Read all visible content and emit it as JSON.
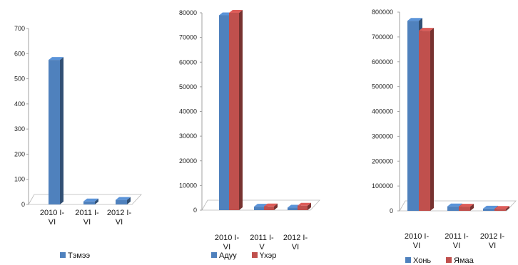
{
  "chart_data": [
    {
      "type": "bar",
      "categories": [
        [
          "2010 I-",
          "VI"
        ],
        [
          "2011 I-",
          "VI"
        ],
        [
          "2012 I-",
          "VI"
        ]
      ],
      "series": [
        {
          "name": "Тэмээ",
          "values": [
            575,
            12,
            18
          ],
          "color": "#4f81bd"
        }
      ],
      "y_ticks": [
        "0",
        "100",
        "200",
        "300",
        "400",
        "500",
        "600",
        "700"
      ],
      "ylim": [
        0,
        700
      ]
    },
    {
      "type": "bar",
      "categories": [
        [
          "2010 I-",
          "VI"
        ],
        [
          "2011 I-",
          "V"
        ],
        [
          "2012 I-",
          "VI"
        ]
      ],
      "series": [
        {
          "name": "Адуу",
          "values": [
            79000,
            1400,
            1000
          ],
          "color": "#4f81bd"
        },
        {
          "name": "Үхэр",
          "values": [
            80000,
            1500,
            1800
          ],
          "color": "#c0504d"
        }
      ],
      "y_ticks": [
        "0",
        "10000",
        "20000",
        "30000",
        "40000",
        "50000",
        "60000",
        "70000",
        "80000"
      ],
      "ylim": [
        0,
        80000
      ]
    },
    {
      "type": "bar",
      "categories": [
        [
          "2010 I-",
          "VI"
        ],
        [
          "2011 I-",
          "VI"
        ],
        [
          "2012 I-",
          "VI"
        ]
      ],
      "series": [
        {
          "name": "Хонь",
          "values": [
            765000,
            18000,
            9000
          ],
          "color": "#4f81bd"
        },
        {
          "name": "Ямаа",
          "values": [
            725000,
            17000,
            8000
          ],
          "color": "#c0504d"
        }
      ],
      "y_ticks": [
        "0",
        "100000",
        "200000",
        "300000",
        "400000",
        "500000",
        "600000",
        "700000",
        "800000"
      ],
      "ylim": [
        0,
        800000
      ]
    }
  ]
}
